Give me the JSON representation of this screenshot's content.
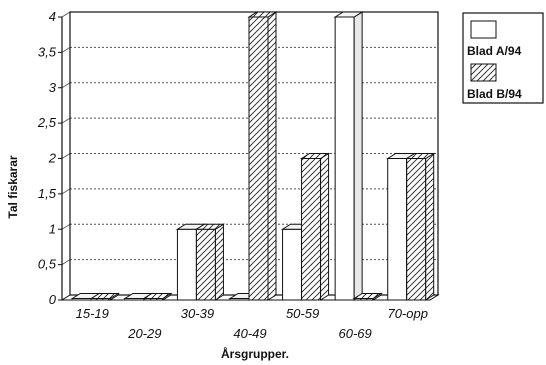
{
  "chart_data": {
    "type": "bar",
    "xlabel": "Årsgrupper.",
    "ylabel": "Tal fiskarar",
    "ylim": [
      0,
      4
    ],
    "y_ticks": [
      "0",
      "0,5",
      "1",
      "1,5",
      "2",
      "2,5",
      "3",
      "3,5",
      "4"
    ],
    "categories": [
      "15-19",
      "20-29",
      "30-39",
      "40-49",
      "50-59",
      "60-69",
      "70-opp"
    ],
    "series": [
      {
        "name": "Blad A/94",
        "pattern": "plain",
        "values": [
          0,
          0,
          1,
          0,
          1,
          4,
          2
        ]
      },
      {
        "name": "Blad B/94",
        "pattern": "hatched",
        "values": [
          0,
          0,
          1,
          4,
          2,
          0,
          2
        ]
      }
    ],
    "grid": true,
    "legend_position": "top-right",
    "style": "3d-bars"
  },
  "colors": {
    "bar_fill": "#ffffff",
    "outline": "#111111",
    "grid": "#555555"
  }
}
